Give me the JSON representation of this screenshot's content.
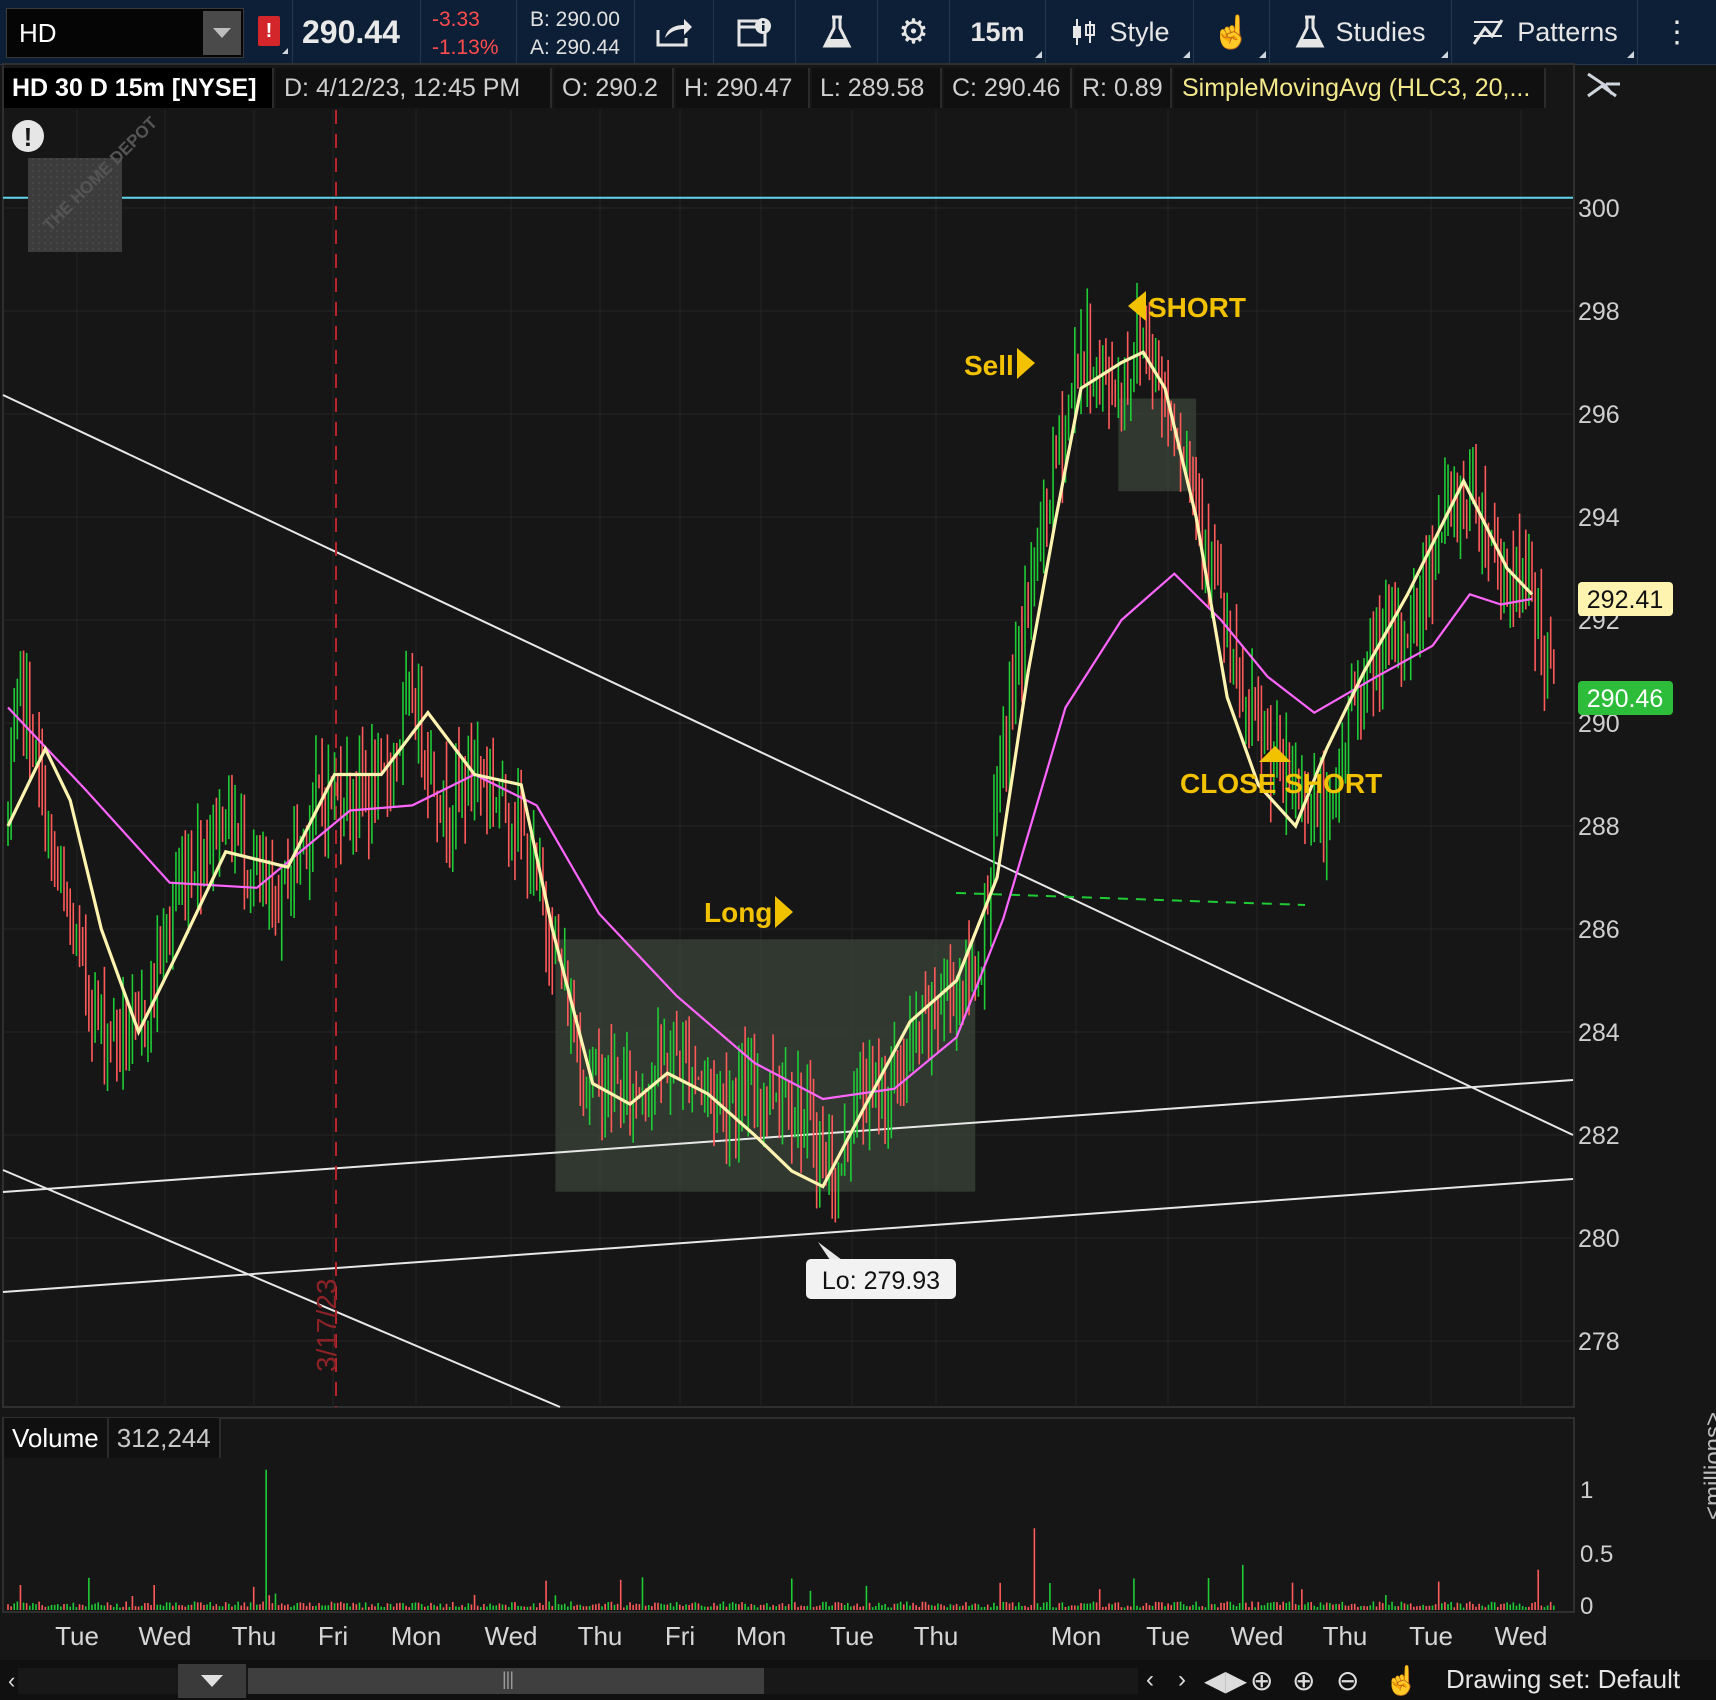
{
  "toolbar": {
    "symbol": "HD",
    "alert_flag": "!",
    "last_price": "290.44",
    "net_change": "-3.33",
    "pct_change": "-1.13%",
    "bid": "B: 290.00",
    "ask": "A: 290.44",
    "aggregation": "15m",
    "style_label": "Style",
    "studies_label": "Studies",
    "patterns_label": "Patterns",
    "icons": [
      "share-icon",
      "calendar-info-icon",
      "flask-icon",
      "gear-icon",
      "candlestick-icon",
      "hand-pointer-icon",
      "flask-icon",
      "pattern-icon"
    ]
  },
  "header": {
    "title": "HD 30 D 15m [NYSE]",
    "date": "D: 4/12/23, 12:45 PM",
    "open": "O: 290.2",
    "high": "H: 290.47",
    "low": "L: 289.58",
    "close": "C: 290.46",
    "range": "R: 0.89",
    "study": "SimpleMovingAvg (HLC3, 20,..."
  },
  "alert_icon": "!",
  "logo": "THE HOME DEPOT",
  "vertical_marker": "3/17/23",
  "annotations": {
    "short": "SHORT",
    "sell": "Sell",
    "long": "Long",
    "close_short": "CLOSE SHORT",
    "low_bubble": "Lo: 279.93"
  },
  "price_badges": {
    "sma_value": "292.41",
    "last_value": "290.46"
  },
  "volume": {
    "title": "Volume",
    "value": "312,244",
    "axis_ticks": [
      "1",
      "0.5",
      "0"
    ],
    "unit": "<millions>"
  },
  "colors": {
    "background": "#161616",
    "up": "#1fcc36",
    "down": "#ff5a5a",
    "fast_ma": "#fff3b0",
    "slow_ma": "#ff66ff",
    "annotation": "#f2c200",
    "resistance": "#61d4ea",
    "badge_sma": "#fff3b0",
    "badge_last": "#2ebd3a"
  },
  "chart_data": {
    "type": "candlestick",
    "y_ticks": [
      300,
      298,
      296,
      294,
      292,
      290,
      288,
      286,
      284,
      282,
      280,
      278
    ],
    "ylim": [
      276.8,
      301.9
    ],
    "x_labels": [
      "Tue",
      "Wed",
      "Thu",
      "Fri",
      "Mon",
      "Wed",
      "Thu",
      "Fri",
      "Mon",
      "Tue",
      "Thu",
      "Mon",
      "Tue",
      "Wed",
      "Thu",
      "Tue",
      "Wed"
    ],
    "resistance_level": 300.2,
    "support_dashed_level": 286.7,
    "last_price": 290.46,
    "sma_fast_last": 292.41,
    "period_low": 279.93,
    "price_path": [
      [
        0,
        288.1
      ],
      [
        4,
        290.8
      ],
      [
        10,
        288.9
      ],
      [
        14,
        287.4
      ],
      [
        20,
        286.0
      ],
      [
        30,
        284.1
      ],
      [
        42,
        283.9
      ],
      [
        55,
        286.9
      ],
      [
        70,
        288.3
      ],
      [
        85,
        286.3
      ],
      [
        100,
        288.6
      ],
      [
        120,
        288.7
      ],
      [
        130,
        290.5
      ],
      [
        140,
        288.3
      ],
      [
        150,
        289.2
      ],
      [
        163,
        288.2
      ],
      [
        175,
        285.9
      ],
      [
        185,
        283.2
      ],
      [
        200,
        282.8
      ],
      [
        215,
        283.6
      ],
      [
        230,
        282.7
      ],
      [
        250,
        283.0
      ],
      [
        260,
        281.8
      ],
      [
        267,
        281.0
      ],
      [
        272,
        282.7
      ],
      [
        285,
        283.0
      ],
      [
        300,
        284.7
      ],
      [
        312,
        285.2
      ],
      [
        318,
        288.5
      ],
      [
        325,
        291.4
      ],
      [
        335,
        294.6
      ],
      [
        345,
        297.2
      ],
      [
        357,
        296.4
      ],
      [
        365,
        297.6
      ],
      [
        372,
        296.4
      ],
      [
        380,
        295.0
      ],
      [
        388,
        292.8
      ],
      [
        395,
        290.6
      ],
      [
        402,
        289.8
      ],
      [
        410,
        288.9
      ],
      [
        418,
        288.6
      ],
      [
        425,
        287.9
      ],
      [
        432,
        290.4
      ],
      [
        440,
        291.3
      ],
      [
        452,
        292.0
      ],
      [
        462,
        294.1
      ],
      [
        472,
        294.5
      ],
      [
        480,
        293.0
      ],
      [
        490,
        292.6
      ],
      [
        497,
        290.6
      ]
    ],
    "sma_fast": [
      [
        0,
        288.0
      ],
      [
        12,
        289.5
      ],
      [
        20,
        288.5
      ],
      [
        30,
        286.0
      ],
      [
        42,
        284.0
      ],
      [
        55,
        285.6
      ],
      [
        70,
        287.5
      ],
      [
        90,
        287.2
      ],
      [
        105,
        289.0
      ],
      [
        120,
        289.0
      ],
      [
        135,
        290.2
      ],
      [
        150,
        289.0
      ],
      [
        165,
        288.8
      ],
      [
        175,
        286.0
      ],
      [
        188,
        283.0
      ],
      [
        200,
        282.6
      ],
      [
        212,
        283.2
      ],
      [
        225,
        282.8
      ],
      [
        240,
        282.0
      ],
      [
        252,
        281.3
      ],
      [
        262,
        281.0
      ],
      [
        275,
        282.5
      ],
      [
        290,
        284.2
      ],
      [
        305,
        285.0
      ],
      [
        318,
        287.0
      ],
      [
        328,
        291.0
      ],
      [
        337,
        294.0
      ],
      [
        345,
        296.5
      ],
      [
        358,
        297.0
      ],
      [
        365,
        297.2
      ],
      [
        372,
        296.5
      ],
      [
        382,
        294.0
      ],
      [
        392,
        290.5
      ],
      [
        402,
        288.8
      ],
      [
        414,
        288.0
      ],
      [
        424,
        289.5
      ],
      [
        436,
        291.0
      ],
      [
        450,
        292.5
      ],
      [
        468,
        294.7
      ],
      [
        482,
        293.0
      ],
      [
        490,
        292.5
      ]
    ],
    "sma_slow": [
      [
        0,
        290.3
      ],
      [
        25,
        288.7
      ],
      [
        52,
        286.9
      ],
      [
        80,
        286.8
      ],
      [
        110,
        288.3
      ],
      [
        130,
        288.4
      ],
      [
        150,
        289.0
      ],
      [
        170,
        288.4
      ],
      [
        190,
        286.3
      ],
      [
        215,
        284.7
      ],
      [
        240,
        283.4
      ],
      [
        262,
        282.7
      ],
      [
        285,
        282.9
      ],
      [
        305,
        283.9
      ],
      [
        320,
        286.2
      ],
      [
        340,
        290.3
      ],
      [
        358,
        292.0
      ],
      [
        375,
        292.9
      ],
      [
        390,
        292.0
      ],
      [
        405,
        290.9
      ],
      [
        420,
        290.2
      ],
      [
        440,
        290.9
      ],
      [
        458,
        291.5
      ],
      [
        470,
        292.5
      ],
      [
        480,
        292.3
      ],
      [
        490,
        292.41
      ]
    ],
    "boxes": [
      {
        "x0": 176,
        "x1": 311,
        "y0": 280.9,
        "y1": 285.8
      },
      {
        "x0": 357,
        "x1": 382,
        "y0": 294.5,
        "y1": 296.3
      }
    ],
    "volume_unit": "millions",
    "volume_ylim": [
      0,
      1.15
    ],
    "volume_spikes": [
      [
        83,
        1.15
      ],
      [
        173,
        0.24
      ],
      [
        330,
        0.67
      ],
      [
        397,
        0.37
      ],
      [
        492,
        0.33
      ]
    ]
  }
}
